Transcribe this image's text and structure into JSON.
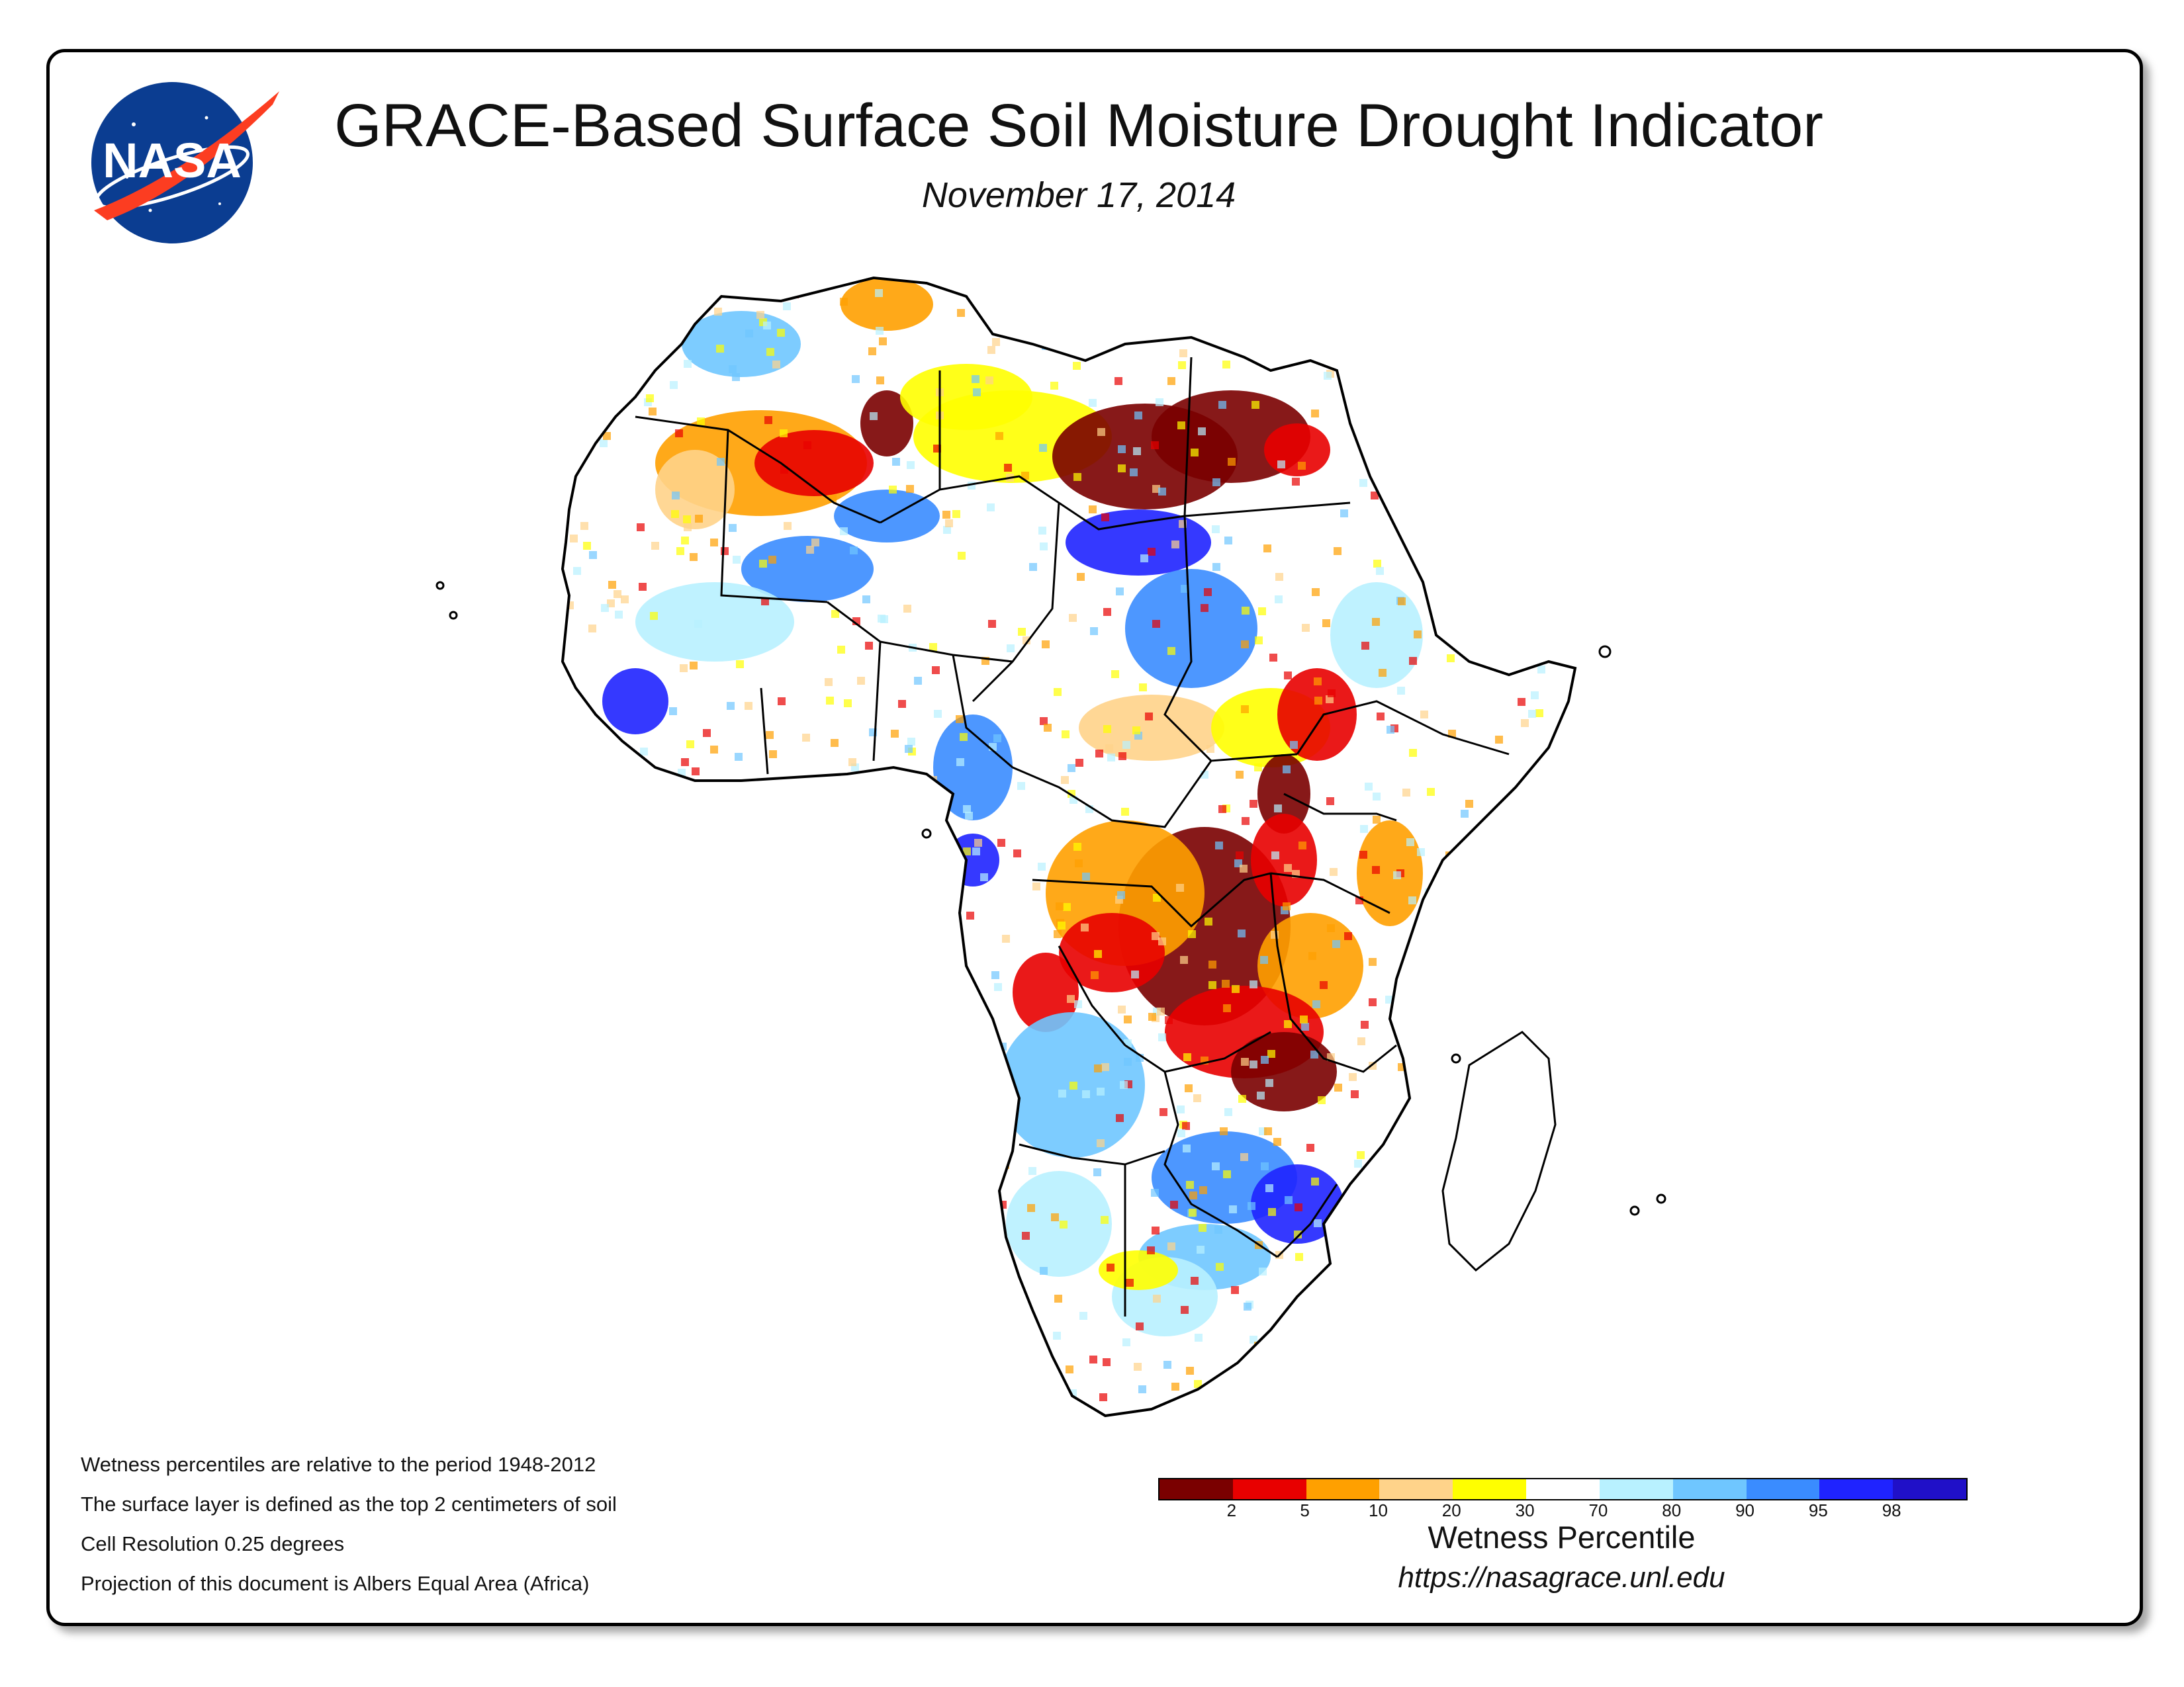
{
  "header": {
    "title": "GRACE-Based Surface Soil Moisture Drought Indicator",
    "date": "November 17, 2014"
  },
  "logo": {
    "text": "NASA",
    "icon": "nasa-meatball-logo"
  },
  "notes": [
    "Wetness percentiles are relative to the period 1948-2012",
    "The surface layer is defined as the top 2 centimeters of soil",
    "Cell Resolution 0.25 degrees",
    "Projection of this document is Albers Equal Area (Africa)"
  ],
  "legend": {
    "title": "Wetness Percentile",
    "url": "https://nasagrace.unl.edu",
    "colors": [
      "#7a0000",
      "#e80000",
      "#ffa000",
      "#ffd38a",
      "#ffff00",
      "#ffffff",
      "#b8f1ff",
      "#6fc6ff",
      "#3a8cff",
      "#1f23ff",
      "#2010c8"
    ],
    "ticks": [
      "2",
      "5",
      "10",
      "20",
      "30",
      "70",
      "80",
      "90",
      "95",
      "98"
    ]
  },
  "map": {
    "region": "Africa",
    "colors": {
      "extreme_dry": "#7a0000",
      "very_dry": "#e80000",
      "dry": "#ffa000",
      "moderately_dry": "#ffd38a",
      "slightly_dry": "#ffff00",
      "normal": "#ffffff",
      "slightly_wet": "#b8f1ff",
      "wet": "#6fc6ff",
      "very_wet": "#3a8cff",
      "extreme_wet": "#1f23ff"
    }
  }
}
